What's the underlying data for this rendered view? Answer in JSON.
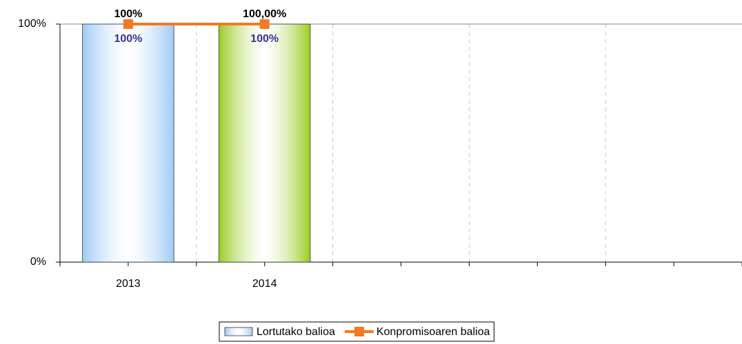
{
  "chart_data": {
    "type": "bar",
    "categories": [
      "2013",
      "2014",
      null,
      null,
      null
    ],
    "series": [
      {
        "name": "Lortutako balioa",
        "type": "bar",
        "color": "#9fcaf6",
        "colors": [
          "#9fcaf6",
          "#9acd23"
        ],
        "values": [
          100,
          100,
          null,
          null,
          null
        ],
        "value_labels": [
          "100%",
          "100%",
          null,
          null,
          null
        ],
        "label_color": "#333399"
      },
      {
        "name": "Konpromisoaren balioa",
        "type": "line",
        "color": "#f47920",
        "values": [
          100,
          100,
          null,
          null,
          null
        ],
        "value_labels": [
          "100%",
          "100,00%",
          null,
          null,
          null
        ]
      }
    ],
    "ylim": [
      0,
      100
    ],
    "yticks": [
      {
        "value": 0,
        "label": "0%"
      },
      {
        "value": 100,
        "label": "100%"
      }
    ],
    "grid": true,
    "legend": "bottom"
  }
}
